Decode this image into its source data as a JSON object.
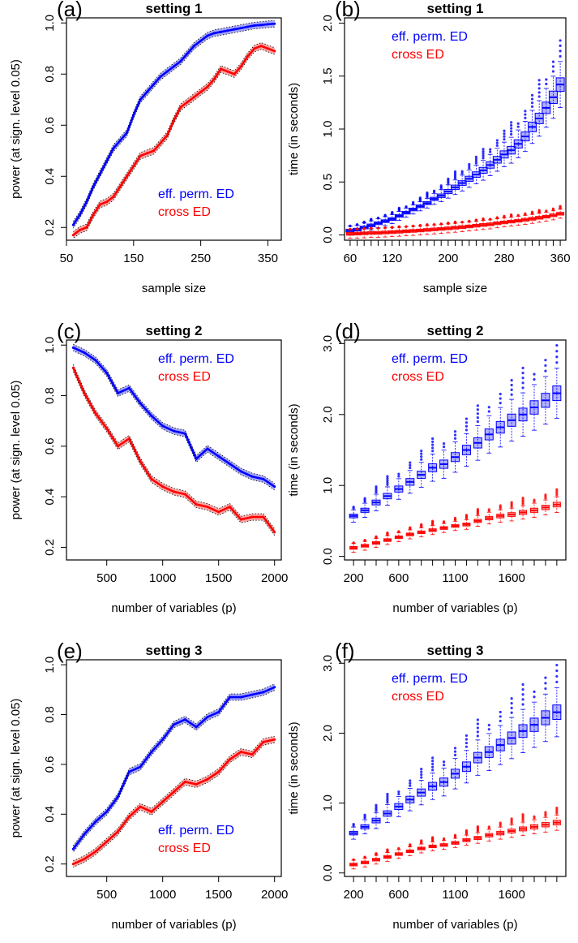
{
  "chart_data": [
    {
      "panel": "(a)",
      "title": "setting 1",
      "type": "line",
      "xlabel": "sample size",
      "ylabel": "power (at sign. level 0.05)",
      "xlim": [
        50,
        370
      ],
      "ylim": [
        0.15,
        1.02
      ],
      "x_ticks": [
        50,
        150,
        250,
        350
      ],
      "y_ticks": [
        "0.2",
        "0.4",
        "0.6",
        "0.8",
        "1.0"
      ],
      "legend": [
        "eff. perm. ED",
        "cross ED"
      ],
      "legend_position": "bottom-right",
      "x": [
        60,
        70,
        80,
        90,
        100,
        110,
        120,
        130,
        140,
        150,
        160,
        170,
        180,
        190,
        200,
        210,
        220,
        230,
        240,
        250,
        260,
        270,
        280,
        290,
        300,
        310,
        320,
        330,
        340,
        350,
        360
      ],
      "series": [
        {
          "name": "eff. perm. ED",
          "color": "#0000ff",
          "values": [
            0.21,
            0.25,
            0.3,
            0.36,
            0.41,
            0.46,
            0.51,
            0.54,
            0.57,
            0.64,
            0.7,
            0.73,
            0.76,
            0.79,
            0.81,
            0.83,
            0.85,
            0.88,
            0.91,
            0.93,
            0.95,
            0.96,
            0.965,
            0.97,
            0.975,
            0.98,
            0.985,
            0.99,
            0.992,
            0.995,
            0.997
          ]
        },
        {
          "name": "cross ED",
          "color": "#ff0000",
          "values": [
            0.17,
            0.19,
            0.2,
            0.25,
            0.29,
            0.3,
            0.32,
            0.36,
            0.4,
            0.44,
            0.48,
            0.49,
            0.5,
            0.53,
            0.56,
            0.62,
            0.67,
            0.69,
            0.71,
            0.73,
            0.75,
            0.78,
            0.82,
            0.81,
            0.8,
            0.83,
            0.87,
            0.9,
            0.91,
            0.9,
            0.89
          ]
        }
      ]
    },
    {
      "panel": "(b)",
      "title": "setting 1",
      "type": "box",
      "xlabel": "sample size",
      "ylabel": "time (in seconds)",
      "xlim": [
        52,
        368
      ],
      "ylim": [
        -0.05,
        2.05
      ],
      "x_ticks": [
        60,
        120,
        200,
        280,
        360
      ],
      "y_ticks": [
        "0.0",
        "0.5",
        "1.0",
        "1.5",
        "2.0"
      ],
      "legend": [
        "eff. perm. ED",
        "cross ED"
      ],
      "legend_position": "top-left",
      "x": [
        60,
        70,
        80,
        90,
        100,
        110,
        120,
        130,
        140,
        150,
        160,
        170,
        180,
        190,
        200,
        210,
        220,
        230,
        240,
        250,
        260,
        270,
        280,
        290,
        300,
        310,
        320,
        330,
        340,
        350,
        360
      ],
      "series": [
        {
          "name": "eff. perm. ED",
          "color": "#0000ff",
          "values": [
            0.04,
            0.05,
            0.07,
            0.09,
            0.11,
            0.13,
            0.15,
            0.18,
            0.21,
            0.24,
            0.27,
            0.3,
            0.34,
            0.37,
            0.41,
            0.45,
            0.49,
            0.53,
            0.57,
            0.61,
            0.66,
            0.71,
            0.76,
            0.8,
            0.86,
            0.93,
            1.02,
            1.1,
            1.2,
            1.3,
            1.42
          ]
        },
        {
          "name": "cross ED",
          "color": "#ff0000",
          "values": [
            0.01,
            0.012,
            0.015,
            0.018,
            0.02,
            0.023,
            0.026,
            0.03,
            0.034,
            0.038,
            0.042,
            0.047,
            0.052,
            0.057,
            0.062,
            0.068,
            0.074,
            0.08,
            0.087,
            0.094,
            0.1,
            0.11,
            0.118,
            0.126,
            0.134,
            0.143,
            0.152,
            0.162,
            0.172,
            0.185,
            0.2
          ]
        }
      ]
    },
    {
      "panel": "(c)",
      "title": "setting 2",
      "type": "line",
      "xlabel": "number of variables (p)",
      "ylabel": "power (at sign. level 0.05)",
      "xlim": [
        140,
        2060
      ],
      "ylim": [
        0.15,
        1.02
      ],
      "x_ticks": [
        500,
        1000,
        1500,
        2000
      ],
      "y_ticks": [
        "0.2",
        "0.4",
        "0.6",
        "0.8",
        "1.0"
      ],
      "legend": [
        "eff. perm. ED",
        "cross ED"
      ],
      "legend_position": "top-right",
      "x": [
        200,
        300,
        400,
        500,
        600,
        700,
        800,
        900,
        1000,
        1100,
        1200,
        1300,
        1400,
        1500,
        1600,
        1700,
        1800,
        1900,
        2000
      ],
      "series": [
        {
          "name": "eff. perm. ED",
          "color": "#0000ff",
          "values": [
            0.99,
            0.97,
            0.94,
            0.89,
            0.81,
            0.83,
            0.77,
            0.72,
            0.68,
            0.66,
            0.65,
            0.55,
            0.59,
            0.56,
            0.53,
            0.5,
            0.48,
            0.47,
            0.44
          ]
        },
        {
          "name": "cross ED",
          "color": "#ff0000",
          "values": [
            0.91,
            0.81,
            0.73,
            0.67,
            0.6,
            0.63,
            0.54,
            0.47,
            0.44,
            0.42,
            0.41,
            0.37,
            0.36,
            0.34,
            0.36,
            0.31,
            0.32,
            0.32,
            0.26
          ]
        }
      ]
    },
    {
      "panel": "(d)",
      "title": "setting 2",
      "type": "box",
      "xlabel": "number of variables (p)",
      "ylabel": "time (in seconds)",
      "xlim": [
        120,
        2080
      ],
      "ylim": [
        -0.05,
        3.05
      ],
      "x_ticks": [
        200,
        600,
        1100,
        1600
      ],
      "y_ticks": [
        "0.0",
        "1.0",
        "2.0",
        "3.0"
      ],
      "legend": [
        "eff. perm. ED",
        "cross ED"
      ],
      "legend_position": "top-left",
      "x": [
        200,
        300,
        400,
        500,
        600,
        700,
        800,
        900,
        1000,
        1100,
        1200,
        1300,
        1400,
        1500,
        1600,
        1700,
        1800,
        1900,
        2000
      ],
      "series": [
        {
          "name": "eff. perm. ED",
          "color": "#0000ff",
          "values": [
            0.57,
            0.65,
            0.76,
            0.85,
            0.95,
            1.05,
            1.15,
            1.25,
            1.3,
            1.4,
            1.5,
            1.6,
            1.72,
            1.82,
            1.92,
            2.0,
            2.1,
            2.2,
            2.3
          ]
        },
        {
          "name": "cross ED",
          "color": "#ff0000",
          "values": [
            0.12,
            0.15,
            0.19,
            0.23,
            0.27,
            0.31,
            0.34,
            0.37,
            0.4,
            0.43,
            0.45,
            0.5,
            0.54,
            0.57,
            0.59,
            0.62,
            0.65,
            0.69,
            0.73
          ]
        }
      ]
    },
    {
      "panel": "(e)",
      "title": "setting 3",
      "type": "line",
      "xlabel": "number of variables (p)",
      "ylabel": "power (at sign. level 0.05)",
      "xlim": [
        140,
        2060
      ],
      "ylim": [
        0.15,
        1.02
      ],
      "x_ticks": [
        500,
        1000,
        1500,
        2000
      ],
      "y_ticks": [
        "0.2",
        "0.4",
        "0.6",
        "0.8",
        "1.0"
      ],
      "legend": [
        "eff. perm. ED",
        "cross ED"
      ],
      "legend_position": "bottom-right",
      "x": [
        200,
        300,
        400,
        500,
        600,
        700,
        800,
        900,
        1000,
        1100,
        1200,
        1300,
        1400,
        1500,
        1600,
        1700,
        1800,
        1900,
        2000
      ],
      "series": [
        {
          "name": "eff. perm. ED",
          "color": "#0000ff",
          "values": [
            0.26,
            0.32,
            0.37,
            0.41,
            0.47,
            0.57,
            0.59,
            0.65,
            0.7,
            0.76,
            0.78,
            0.75,
            0.79,
            0.81,
            0.87,
            0.87,
            0.88,
            0.89,
            0.91
          ]
        },
        {
          "name": "cross ED",
          "color": "#ff0000",
          "values": [
            0.2,
            0.22,
            0.25,
            0.29,
            0.33,
            0.39,
            0.43,
            0.41,
            0.45,
            0.49,
            0.53,
            0.52,
            0.54,
            0.57,
            0.62,
            0.65,
            0.64,
            0.69,
            0.7
          ]
        }
      ]
    },
    {
      "panel": "(f)",
      "title": "setting 3",
      "type": "box",
      "xlabel": "number of variables (p)",
      "ylabel": "time (in seconds)",
      "xlim": [
        120,
        2080
      ],
      "ylim": [
        -0.05,
        3.05
      ],
      "x_ticks": [
        200,
        600,
        1100,
        1600
      ],
      "y_ticks": [
        "0.0",
        "1.0",
        "2.0",
        "3.0"
      ],
      "legend": [
        "eff. perm. ED",
        "cross ED"
      ],
      "legend_position": "top-left",
      "x": [
        200,
        300,
        400,
        500,
        600,
        700,
        800,
        900,
        1000,
        1100,
        1200,
        1300,
        1400,
        1500,
        1600,
        1700,
        1800,
        1900,
        2000
      ],
      "series": [
        {
          "name": "eff. perm. ED",
          "color": "#0000ff",
          "values": [
            0.57,
            0.66,
            0.75,
            0.85,
            0.95,
            1.05,
            1.15,
            1.24,
            1.3,
            1.42,
            1.52,
            1.65,
            1.73,
            1.83,
            1.93,
            2.03,
            2.12,
            2.22,
            2.3
          ]
        },
        {
          "name": "cross ED",
          "color": "#ff0000",
          "values": [
            0.12,
            0.15,
            0.19,
            0.23,
            0.27,
            0.31,
            0.35,
            0.38,
            0.4,
            0.43,
            0.47,
            0.5,
            0.54,
            0.57,
            0.6,
            0.63,
            0.66,
            0.69,
            0.72
          ]
        }
      ]
    }
  ]
}
